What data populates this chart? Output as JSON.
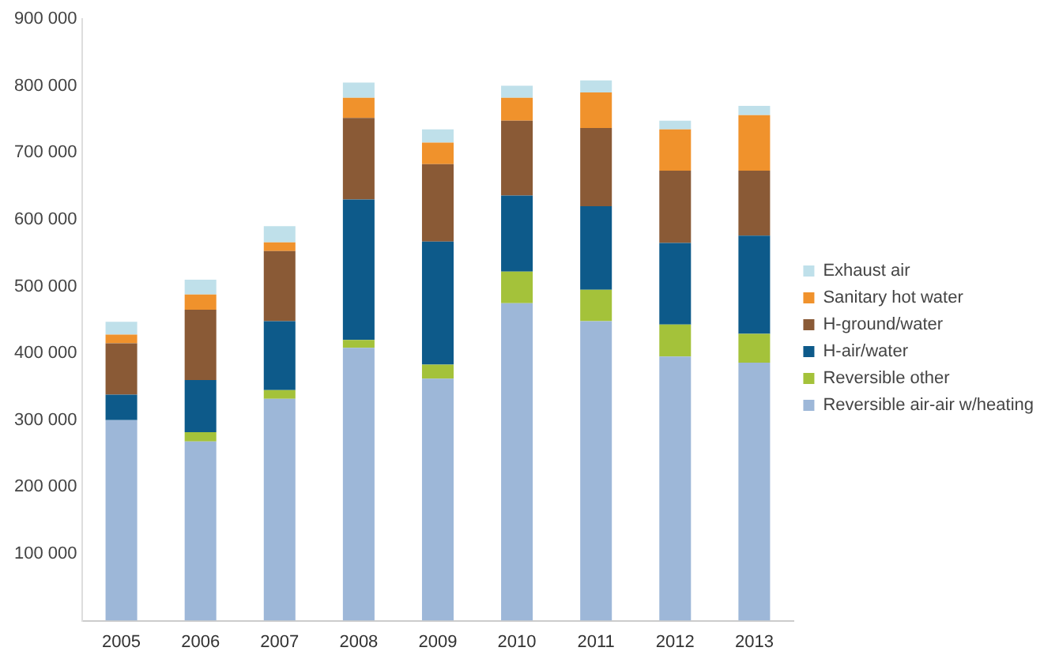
{
  "chart_data": {
    "type": "bar",
    "stacked": true,
    "categories": [
      "2005",
      "2006",
      "2007",
      "2008",
      "2009",
      "2010",
      "2011",
      "2012",
      "2013"
    ],
    "series": [
      {
        "name": "Reversible air-air w/heating",
        "color": "#9db7d8",
        "values": [
          300000,
          268000,
          332000,
          408000,
          362000,
          475000,
          448000,
          395000,
          386000
        ]
      },
      {
        "name": "Reversible other",
        "color": "#a4c23a",
        "values": [
          0,
          14000,
          13000,
          12000,
          21000,
          47000,
          47000,
          48000,
          43000
        ]
      },
      {
        "name": "H-air/water",
        "color": "#0d5a8a",
        "values": [
          38000,
          78000,
          103000,
          210000,
          184000,
          114000,
          125000,
          122000,
          147000
        ]
      },
      {
        "name": "H-ground/water",
        "color": "#8a5a36",
        "values": [
          77000,
          105000,
          105000,
          122000,
          116000,
          112000,
          117000,
          108000,
          97000
        ]
      },
      {
        "name": "Sanitary hot water",
        "color": "#f0922c",
        "values": [
          13000,
          23000,
          13000,
          30000,
          32000,
          34000,
          53000,
          62000,
          83000
        ]
      },
      {
        "name": "Exhaust air",
        "color": "#bfe0ea",
        "values": [
          19000,
          22000,
          24000,
          23000,
          20000,
          18000,
          18000,
          13000,
          14000
        ]
      }
    ],
    "ylim": [
      0,
      900000
    ],
    "yticks": [
      {
        "value": 0,
        "label": null
      },
      {
        "value": 100000,
        "label": "100 000"
      },
      {
        "value": 200000,
        "label": "200 000"
      },
      {
        "value": 300000,
        "label": "300 000"
      },
      {
        "value": 400000,
        "label": "400 000"
      },
      {
        "value": 500000,
        "label": "500 000"
      },
      {
        "value": 600000,
        "label": "600 000"
      },
      {
        "value": 700000,
        "label": "700 000"
      },
      {
        "value": 800000,
        "label": "800 000"
      },
      {
        "value": 900000,
        "label": "900 000"
      }
    ],
    "grid": false,
    "legend": "right"
  }
}
